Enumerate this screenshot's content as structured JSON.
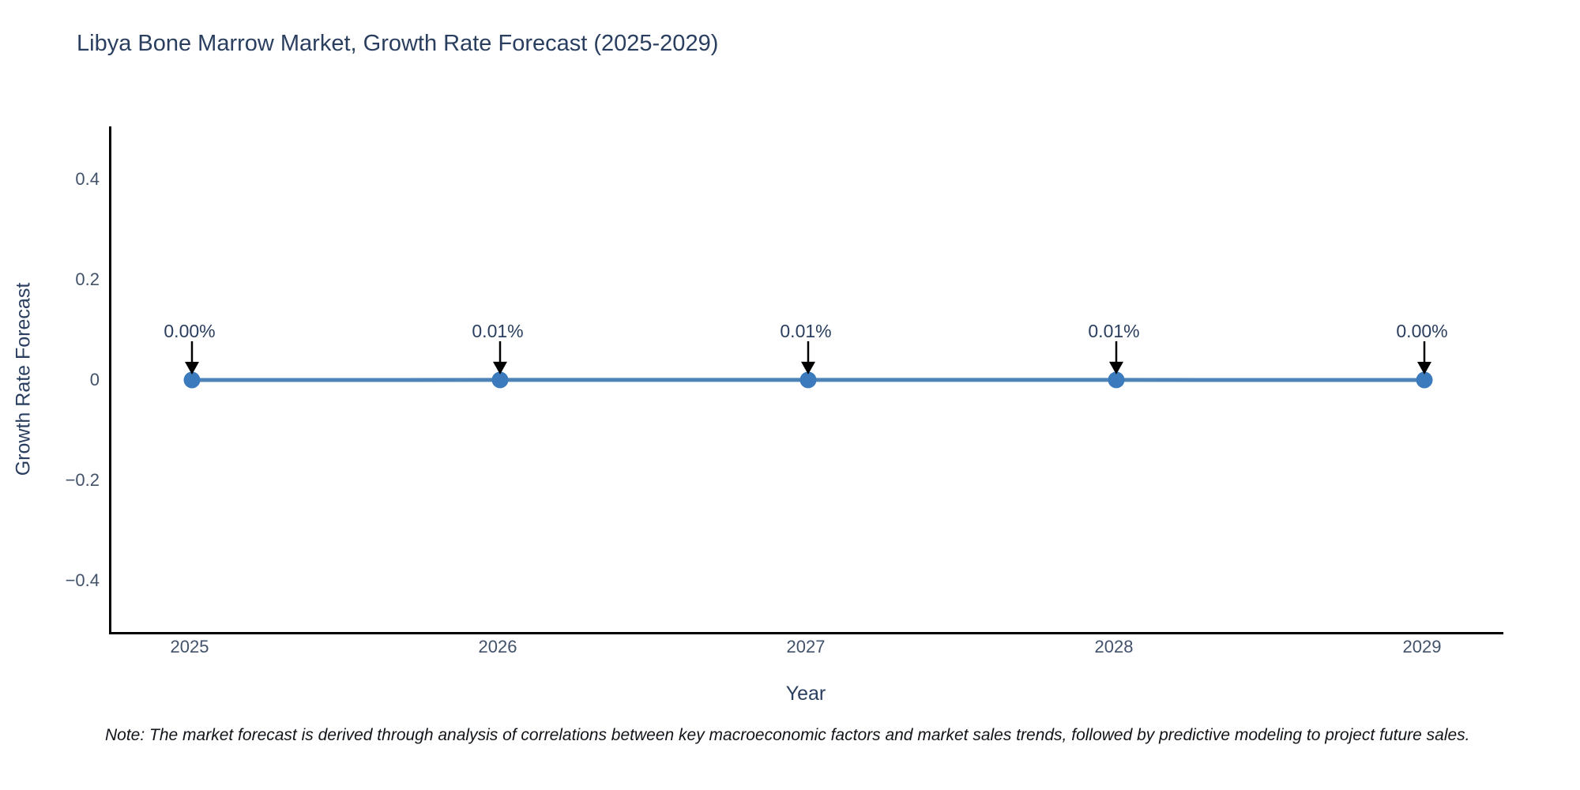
{
  "title": "Libya Bone Marrow Market, Growth Rate Forecast (2025-2029)",
  "note": "Note: The market forecast is derived through analysis of correlations between key macroeconomic factors and market sales trends, followed by predictive modeling to project future sales.",
  "chart_data": {
    "type": "line",
    "title": "Libya Bone Marrow Market, Growth Rate Forecast (2025-2029)",
    "xlabel": "Year",
    "ylabel": "Growth Rate Forecast",
    "categories": [
      "2025",
      "2026",
      "2027",
      "2028",
      "2029"
    ],
    "values": [
      0.0,
      0.0001,
      0.0001,
      0.0001,
      0.0
    ],
    "point_labels": [
      "0.00%",
      "0.01%",
      "0.01%",
      "0.01%",
      "0.00%"
    ],
    "ylim": [
      -0.5,
      0.5
    ],
    "yticks": [
      0.4,
      0.2,
      0,
      -0.2,
      -0.4
    ],
    "ytick_labels": [
      "0.4",
      "0.2",
      "0",
      "−0.2",
      "−0.4"
    ],
    "grid": false,
    "legend": "none",
    "line_color": "#4d84b8",
    "marker_color": "#3b7abd",
    "arrow_color": "#000000",
    "axis_color": "#000000",
    "title_color": "#2a3f5f",
    "tick_color": "#42526b"
  }
}
